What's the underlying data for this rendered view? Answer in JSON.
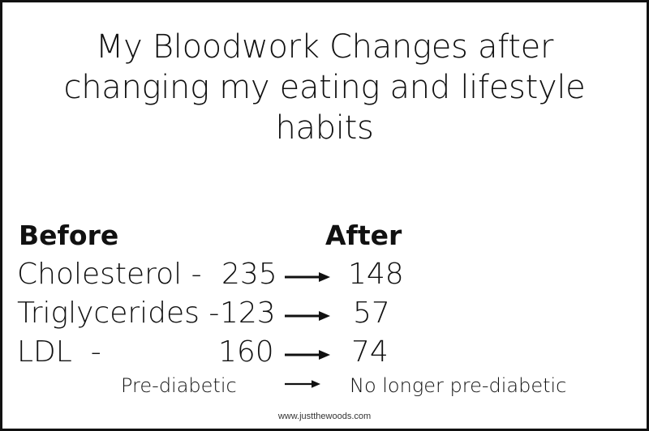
{
  "title_lines": [
    "My Bloodwork Changes after",
    "changing my eating and lifestyle",
    "habits"
  ],
  "headers": {
    "before": "Before",
    "after": "After"
  },
  "rows": [
    {
      "label": "Cholesterol -",
      "before": "235",
      "after": "148"
    },
    {
      "label": "Triglycerides -",
      "before": "123",
      "after": "57"
    },
    {
      "label": "LDL  -",
      "before": "160",
      "after": "74"
    }
  ],
  "status": {
    "before": "Pre-diabetic",
    "after": "No longer pre-diabetic"
  },
  "footer": "www.justthewoods.com",
  "colors": {
    "text": "#111111",
    "border": "#111111",
    "background": "#ffffff"
  },
  "icons": {
    "arrow": "right-arrow-icon"
  }
}
